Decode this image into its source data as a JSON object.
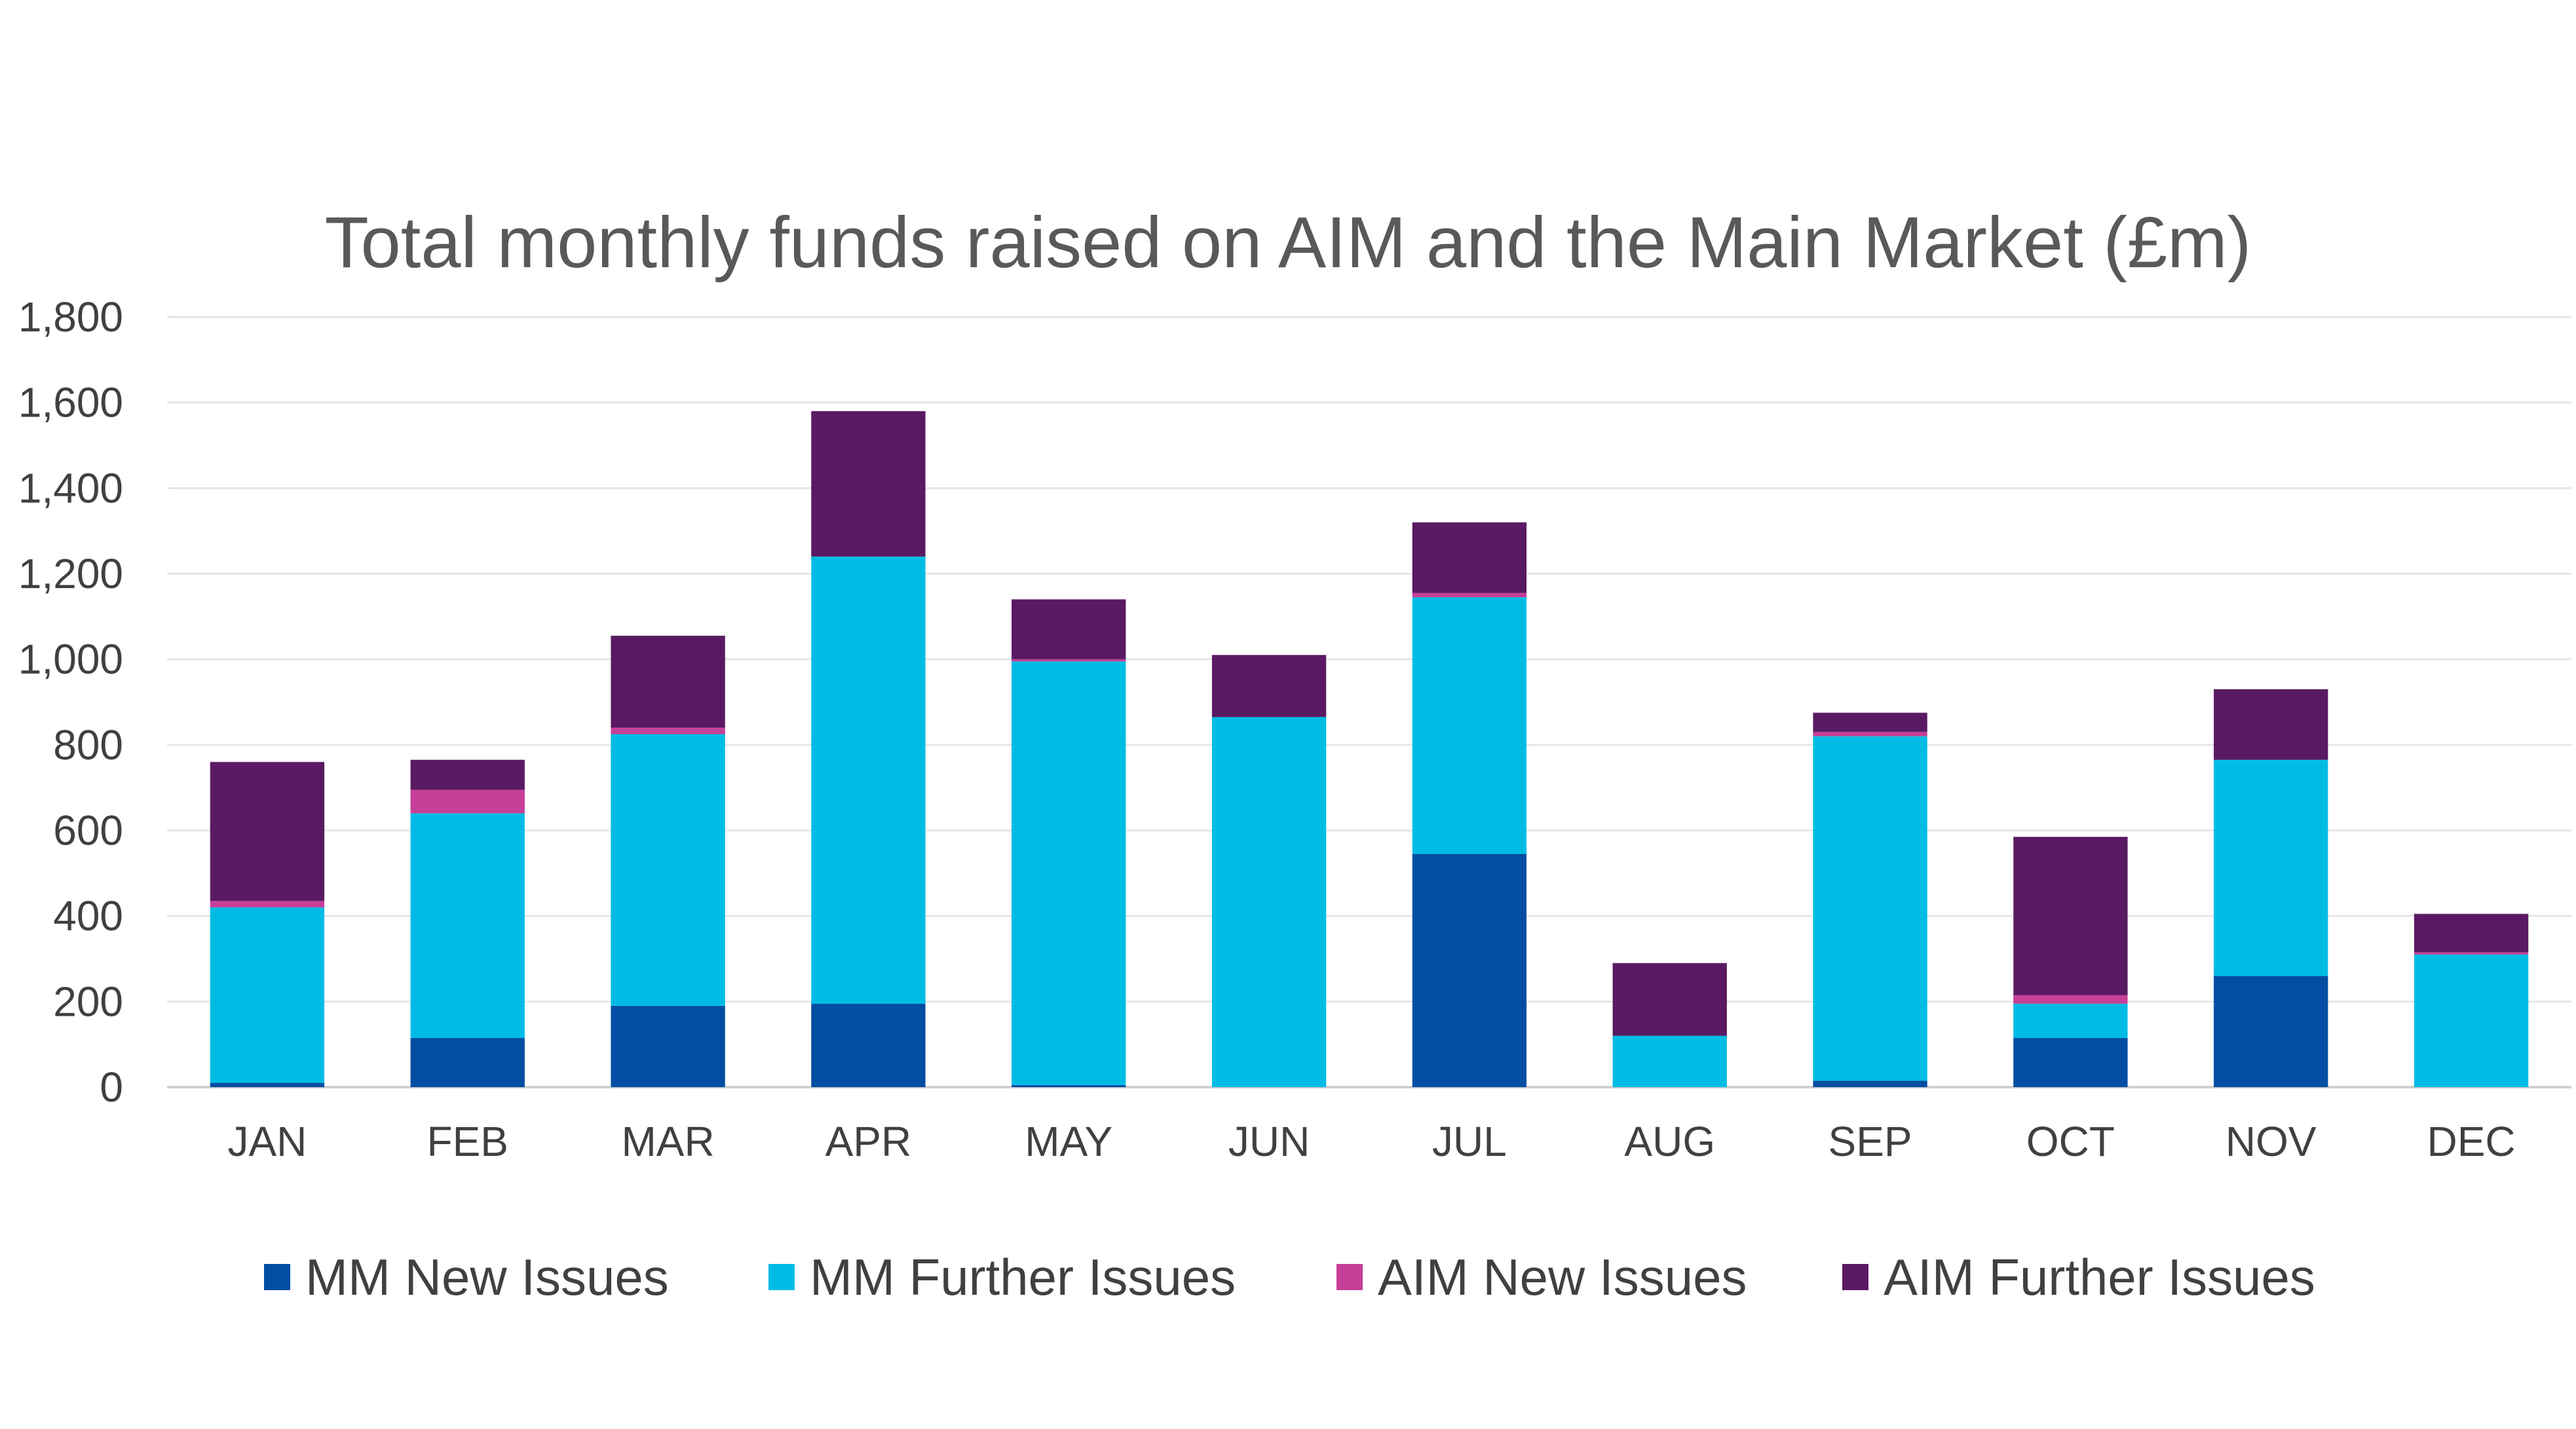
{
  "chart_data": {
    "type": "bar",
    "stacked": true,
    "title": "Total monthly funds raised on AIM and the Main Market (£m)",
    "xlabel": "",
    "ylabel": "",
    "ylim": [
      0,
      1800
    ],
    "yticks": [
      0,
      200,
      400,
      600,
      800,
      1000,
      1200,
      1400,
      1600,
      1800
    ],
    "ytick_labels": [
      "0",
      "200",
      "400",
      "600",
      "800",
      "1,000",
      "1,200",
      "1,400",
      "1,600",
      "1,800"
    ],
    "grid": true,
    "legend_position": "bottom",
    "categories": [
      "JAN",
      "FEB",
      "MAR",
      "APR",
      "MAY",
      "JUN",
      "JUL",
      "AUG",
      "SEP",
      "OCT",
      "NOV",
      "DEC"
    ],
    "series": [
      {
        "name": "MM New Issues",
        "color": "#034EA2",
        "values": [
          10,
          115,
          190,
          195,
          5,
          0,
          545,
          0,
          15,
          115,
          260,
          0
        ]
      },
      {
        "name": "MM Further Issues",
        "color": "#00BCE4",
        "values": [
          410,
          525,
          635,
          1045,
          990,
          865,
          600,
          120,
          805,
          80,
          505,
          310
        ]
      },
      {
        "name": "AIM New Issues",
        "color": "#C63F98",
        "values": [
          15,
          55,
          15,
          0,
          5,
          0,
          10,
          0,
          10,
          20,
          0,
          5
        ]
      },
      {
        "name": "AIM Further Issues",
        "color": "#5A1A63",
        "values": [
          325,
          70,
          215,
          340,
          140,
          145,
          165,
          170,
          45,
          370,
          165,
          90
        ]
      }
    ]
  }
}
